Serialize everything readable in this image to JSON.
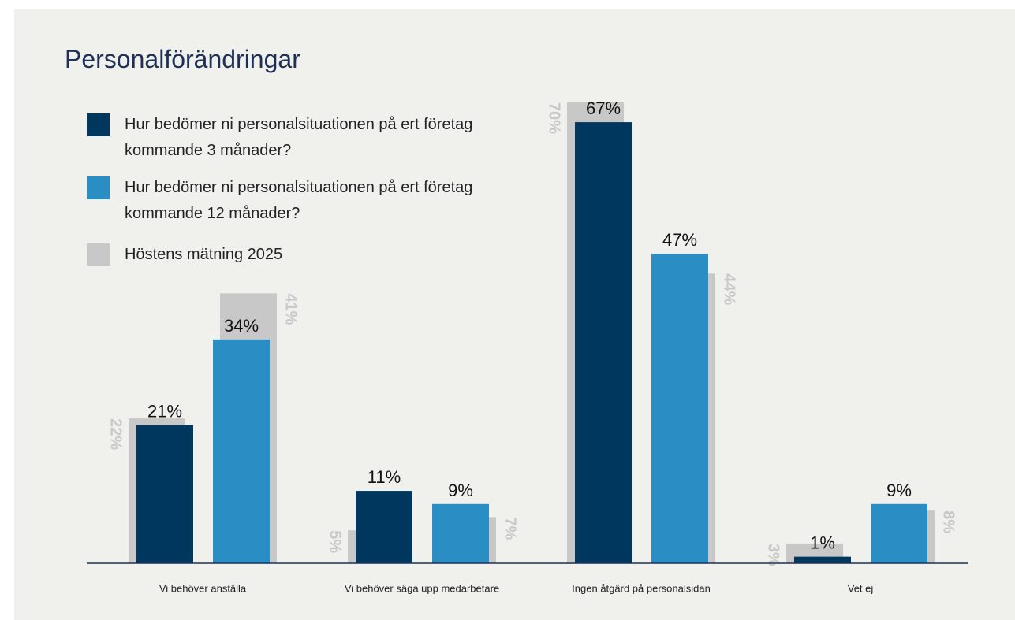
{
  "chart_data": {
    "type": "bar",
    "title": "Personalförändringar",
    "categories": [
      "Vi behöver anställa",
      "Vi behöver säga upp medarbetare",
      "Ingen åtgärd på personalsidan",
      "Vet ej"
    ],
    "series": [
      {
        "name": "Hur bedömer ni personalsituationen på ert företag kommande 3 månader?",
        "color": "#00375f",
        "values": [
          21,
          11,
          67,
          1
        ],
        "value_labels": [
          "21%",
          "11%",
          "67%",
          "1%"
        ],
        "previous_values": [
          22,
          5,
          70,
          3
        ],
        "previous_value_labels": [
          "22%",
          "5%",
          "70%",
          "3%"
        ]
      },
      {
        "name": "Hur bedömer ni personalsituationen på ert företag kommande 12 månader?",
        "color": "#2a8dc4",
        "values": [
          34,
          9,
          47,
          9
        ],
        "value_labels": [
          "34%",
          "9%",
          "47%",
          "9%"
        ],
        "previous_values": [
          41,
          7,
          44,
          8
        ],
        "previous_value_labels": [
          "41%",
          "7%",
          "44%",
          "8%"
        ]
      }
    ],
    "previous": {
      "name": "Höstens mätning 2025",
      "color": "#c8c8c8"
    },
    "ylim": [
      0,
      70
    ]
  }
}
